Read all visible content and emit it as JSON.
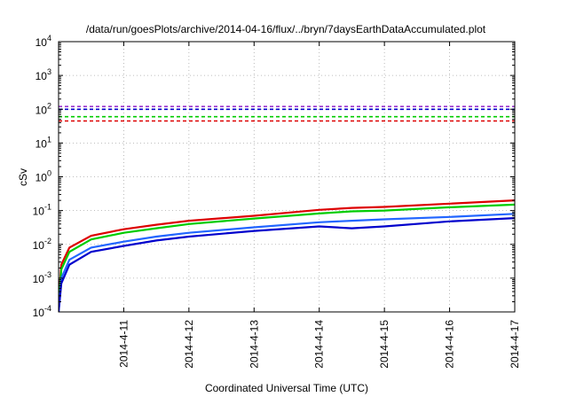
{
  "chart_data": {
    "type": "line",
    "title": "/data/run/goesPlots/archive/2014-04-16/flux/../bryn/7daysEarthDataAccumulated.plot",
    "xlabel": "Coordinated Universal Time (UTC)",
    "ylabel": "cSv",
    "y_scale": "log",
    "ylim": [
      0.0001,
      10000
    ],
    "y_ticks": [
      {
        "mant": "10",
        "exp": "-4",
        "v": 0.0001
      },
      {
        "mant": "10",
        "exp": "-3",
        "v": 0.001
      },
      {
        "mant": "10",
        "exp": "-2",
        "v": 0.01
      },
      {
        "mant": "10",
        "exp": "-1",
        "v": 0.1
      },
      {
        "mant": "10",
        "exp": "0",
        "v": 1
      },
      {
        "mant": "10",
        "exp": "1",
        "v": 10
      },
      {
        "mant": "10",
        "exp": "2",
        "v": 100
      },
      {
        "mant": "10",
        "exp": "3",
        "v": 1000
      },
      {
        "mant": "10",
        "exp": "4",
        "v": 10000
      }
    ],
    "x_unit": "days",
    "xlim": [
      2014.0,
      7.0
    ],
    "x_range_dates": [
      "2014-04-10",
      "2014-04-17"
    ],
    "x_ticks": [
      {
        "label": "2014-4-11",
        "v": "2014-04-11"
      },
      {
        "label": "2014-4-12",
        "v": "2014-04-12"
      },
      {
        "label": "2014-4-13",
        "v": "2014-04-13"
      },
      {
        "label": "2014-4-14",
        "v": "2014-04-14"
      },
      {
        "label": "2014-4-15",
        "v": "2014-04-15"
      },
      {
        "label": "2014-4-16",
        "v": "2014-04-16"
      },
      {
        "label": "2014-4-17",
        "v": "2014-04-17"
      }
    ],
    "grid": true,
    "series": [
      {
        "color": "#dd0000",
        "style": "solid",
        "points": [
          [
            "2014-04-10T00:00",
            0.0002
          ],
          [
            "2014-04-10T01:00",
            0.0025
          ],
          [
            "2014-04-10T04:00",
            0.008
          ],
          [
            "2014-04-10T12:00",
            0.018
          ],
          [
            "2014-04-11T00:00",
            0.028
          ],
          [
            "2014-04-11T12:00",
            0.038
          ],
          [
            "2014-04-12T00:00",
            0.05
          ],
          [
            "2014-04-13T00:00",
            0.07
          ],
          [
            "2014-04-14T00:00",
            0.105
          ],
          [
            "2014-04-14T12:00",
            0.12
          ],
          [
            "2014-04-15T00:00",
            0.128
          ],
          [
            "2014-04-16T00:00",
            0.16
          ],
          [
            "2014-04-17T00:00",
            0.2
          ]
        ]
      },
      {
        "color": "#00cc00",
        "style": "solid",
        "points": [
          [
            "2014-04-10T00:00",
            0.00015
          ],
          [
            "2014-04-10T01:00",
            0.0018
          ],
          [
            "2014-04-10T04:00",
            0.006
          ],
          [
            "2014-04-10T12:00",
            0.014
          ],
          [
            "2014-04-11T00:00",
            0.022
          ],
          [
            "2014-04-11T12:00",
            0.03
          ],
          [
            "2014-04-12T00:00",
            0.04
          ],
          [
            "2014-04-13T00:00",
            0.058
          ],
          [
            "2014-04-14T00:00",
            0.082
          ],
          [
            "2014-04-14T12:00",
            0.095
          ],
          [
            "2014-04-15T00:00",
            0.1
          ],
          [
            "2014-04-16T00:00",
            0.125
          ],
          [
            "2014-04-17T00:00",
            0.15
          ]
        ]
      },
      {
        "color": "#2266ff",
        "style": "solid",
        "points": [
          [
            "2014-04-10T00:00",
            0.0001
          ],
          [
            "2014-04-10T01:00",
            0.001
          ],
          [
            "2014-04-10T04:00",
            0.0035
          ],
          [
            "2014-04-10T12:00",
            0.008
          ],
          [
            "2014-04-11T00:00",
            0.012
          ],
          [
            "2014-04-11T12:00",
            0.017
          ],
          [
            "2014-04-12T00:00",
            0.022
          ],
          [
            "2014-04-13T00:00",
            0.032
          ],
          [
            "2014-04-14T00:00",
            0.045
          ],
          [
            "2014-04-14T12:00",
            0.05
          ],
          [
            "2014-04-15T00:00",
            0.055
          ],
          [
            "2014-04-16T00:00",
            0.065
          ],
          [
            "2014-04-17T00:00",
            0.08
          ]
        ]
      },
      {
        "color": "#0000cc",
        "style": "solid",
        "points": [
          [
            "2014-04-10T00:00",
            0.0001
          ],
          [
            "2014-04-10T01:00",
            0.0007
          ],
          [
            "2014-04-10T04:00",
            0.0025
          ],
          [
            "2014-04-10T12:00",
            0.006
          ],
          [
            "2014-04-11T00:00",
            0.009
          ],
          [
            "2014-04-11T12:00",
            0.013
          ],
          [
            "2014-04-12T00:00",
            0.017
          ],
          [
            "2014-04-13T00:00",
            0.025
          ],
          [
            "2014-04-14T00:00",
            0.034
          ],
          [
            "2014-04-14T12:00",
            0.03
          ],
          [
            "2014-04-15T00:00",
            0.034
          ],
          [
            "2014-04-16T00:00",
            0.048
          ],
          [
            "2014-04-17T00:00",
            0.06
          ]
        ]
      },
      {
        "color": "#9933cc",
        "style": "dashed",
        "points": [
          [
            "2014-04-10T00:00",
            120
          ],
          [
            "2014-04-17T00:00",
            120
          ]
        ]
      },
      {
        "color": "#0000cc",
        "style": "dashed",
        "points": [
          [
            "2014-04-10T00:00",
            100
          ],
          [
            "2014-04-17T00:00",
            100
          ]
        ]
      },
      {
        "color": "#00cc00",
        "style": "dashed",
        "points": [
          [
            "2014-04-10T00:00",
            60
          ],
          [
            "2014-04-17T00:00",
            60
          ]
        ]
      },
      {
        "color": "#dd0000",
        "style": "dashed",
        "points": [
          [
            "2014-04-10T00:00",
            45
          ],
          [
            "2014-04-17T00:00",
            45
          ]
        ]
      }
    ]
  }
}
